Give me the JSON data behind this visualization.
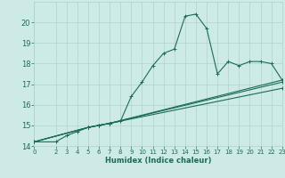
{
  "xlabel": "Humidex (Indice chaleur)",
  "background_color": "#ceeae7",
  "grid_color": "#aed4d0",
  "line_color": "#1a6b5a",
  "xlim": [
    0,
    23
  ],
  "ylim": [
    14,
    21
  ],
  "yticks": [
    14,
    15,
    16,
    17,
    18,
    19,
    20
  ],
  "xtick_labels": [
    "0",
    "2",
    "3",
    "4",
    "5",
    "6",
    "7",
    "8",
    "9",
    "10",
    "11",
    "12",
    "13",
    "14",
    "15",
    "16",
    "17",
    "18",
    "19",
    "20",
    "21",
    "22",
    "23"
  ],
  "xtick_vals": [
    0,
    2,
    3,
    4,
    5,
    6,
    7,
    8,
    9,
    10,
    11,
    12,
    13,
    14,
    15,
    16,
    17,
    18,
    19,
    20,
    21,
    22,
    23
  ],
  "lines": [
    {
      "x": [
        0,
        2,
        3,
        4,
        5,
        6,
        7,
        8,
        9,
        10,
        11,
        12,
        13,
        14,
        15,
        16,
        17,
        18,
        19,
        20,
        21,
        22,
        23
      ],
      "y": [
        14.2,
        14.2,
        14.5,
        14.7,
        14.9,
        15.0,
        15.1,
        15.2,
        16.4,
        17.1,
        17.9,
        18.5,
        18.7,
        20.3,
        20.4,
        19.7,
        17.5,
        18.1,
        17.9,
        18.1,
        18.1,
        18.0,
        17.2
      ]
    },
    {
      "x": [
        0,
        5,
        6,
        7,
        23
      ],
      "y": [
        14.2,
        14.9,
        15.0,
        15.1,
        17.2
      ]
    },
    {
      "x": [
        0,
        5,
        6,
        7,
        23
      ],
      "y": [
        14.2,
        14.9,
        15.0,
        15.1,
        17.1
      ]
    },
    {
      "x": [
        0,
        5,
        6,
        7,
        23
      ],
      "y": [
        14.2,
        14.9,
        15.0,
        15.1,
        16.8
      ]
    }
  ],
  "marker": "+",
  "markersize": 3,
  "linewidth": 0.8
}
